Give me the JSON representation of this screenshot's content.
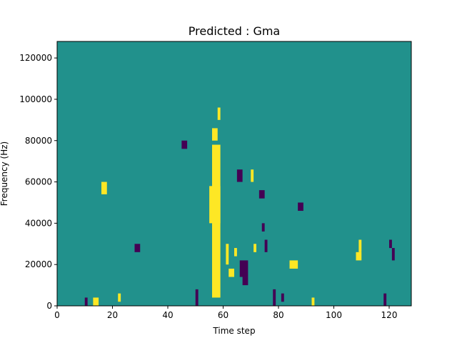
{
  "chart_data": {
    "type": "heatmap",
    "title": "Predicted : Gma",
    "xlabel": "Time step",
    "ylabel": "Frequency (Hz)",
    "xlim": [
      0,
      128
    ],
    "ylim": [
      0,
      128000
    ],
    "x_ticks": [
      0,
      20,
      40,
      60,
      80,
      100,
      120
    ],
    "y_ticks": [
      0,
      20000,
      40000,
      60000,
      80000,
      100000,
      120000
    ],
    "x_tick_labels": [
      "0",
      "20",
      "40",
      "60",
      "80",
      "100",
      "120"
    ],
    "y_tick_labels": [
      "0",
      "20000",
      "40000",
      "60000",
      "80000",
      "100000",
      "120000"
    ],
    "colors": {
      "background": "#21918c",
      "high": "#fde725",
      "low": "#440154"
    },
    "grid": false,
    "colorbar": false,
    "segments": [
      {
        "x": 56,
        "width": 3,
        "y0": 4000,
        "y1": 78000,
        "level": "high"
      },
      {
        "x": 55,
        "width": 4,
        "y0": 40000,
        "y1": 58000,
        "level": "high"
      },
      {
        "x": 56,
        "width": 2,
        "y0": 80000,
        "y1": 86000,
        "level": "high"
      },
      {
        "x": 58,
        "width": 1,
        "y0": 90000,
        "y1": 96000,
        "level": "high"
      },
      {
        "x": 61,
        "width": 1,
        "y0": 20000,
        "y1": 30000,
        "level": "high"
      },
      {
        "x": 62,
        "width": 2,
        "y0": 14000,
        "y1": 18000,
        "level": "high"
      },
      {
        "x": 64,
        "width": 1,
        "y0": 24000,
        "y1": 28000,
        "level": "high"
      },
      {
        "x": 66,
        "width": 3,
        "y0": 14000,
        "y1": 22000,
        "level": "low"
      },
      {
        "x": 67,
        "width": 2,
        "y0": 10000,
        "y1": 14000,
        "level": "low"
      },
      {
        "x": 65,
        "width": 2,
        "y0": 60000,
        "y1": 66000,
        "level": "low"
      },
      {
        "x": 70,
        "width": 1,
        "y0": 60000,
        "y1": 66000,
        "level": "high"
      },
      {
        "x": 71,
        "width": 1,
        "y0": 26000,
        "y1": 30000,
        "level": "high"
      },
      {
        "x": 73,
        "width": 2,
        "y0": 52000,
        "y1": 56000,
        "level": "low"
      },
      {
        "x": 74,
        "width": 1,
        "y0": 36000,
        "y1": 40000,
        "level": "low"
      },
      {
        "x": 75,
        "width": 1,
        "y0": 26000,
        "y1": 32000,
        "level": "low"
      },
      {
        "x": 84,
        "width": 3,
        "y0": 18000,
        "y1": 22000,
        "level": "high"
      },
      {
        "x": 87,
        "width": 2,
        "y0": 46000,
        "y1": 50000,
        "level": "low"
      },
      {
        "x": 108,
        "width": 2,
        "y0": 22000,
        "y1": 26000,
        "level": "high"
      },
      {
        "x": 109,
        "width": 1,
        "y0": 26000,
        "y1": 32000,
        "level": "high"
      },
      {
        "x": 120,
        "width": 1,
        "y0": 28000,
        "y1": 32000,
        "level": "low"
      },
      {
        "x": 121,
        "width": 1,
        "y0": 22000,
        "y1": 28000,
        "level": "low"
      },
      {
        "x": 16,
        "width": 2,
        "y0": 54000,
        "y1": 60000,
        "level": "high"
      },
      {
        "x": 28,
        "width": 2,
        "y0": 26000,
        "y1": 30000,
        "level": "low"
      },
      {
        "x": 45,
        "width": 2,
        "y0": 76000,
        "y1": 80000,
        "level": "low"
      },
      {
        "x": 22,
        "width": 1,
        "y0": 2000,
        "y1": 6000,
        "level": "high"
      },
      {
        "x": 13,
        "width": 2,
        "y0": 0,
        "y1": 4000,
        "level": "high"
      },
      {
        "x": 10,
        "width": 1,
        "y0": 0,
        "y1": 4000,
        "level": "low"
      },
      {
        "x": 92,
        "width": 1,
        "y0": 0,
        "y1": 4000,
        "level": "high"
      },
      {
        "x": 118,
        "width": 1,
        "y0": 0,
        "y1": 6000,
        "level": "low"
      },
      {
        "x": 78,
        "width": 1,
        "y0": 0,
        "y1": 8000,
        "level": "low"
      },
      {
        "x": 81,
        "width": 1,
        "y0": 2000,
        "y1": 6000,
        "level": "low"
      },
      {
        "x": 50,
        "width": 1,
        "y0": 0,
        "y1": 8000,
        "level": "low"
      }
    ]
  }
}
